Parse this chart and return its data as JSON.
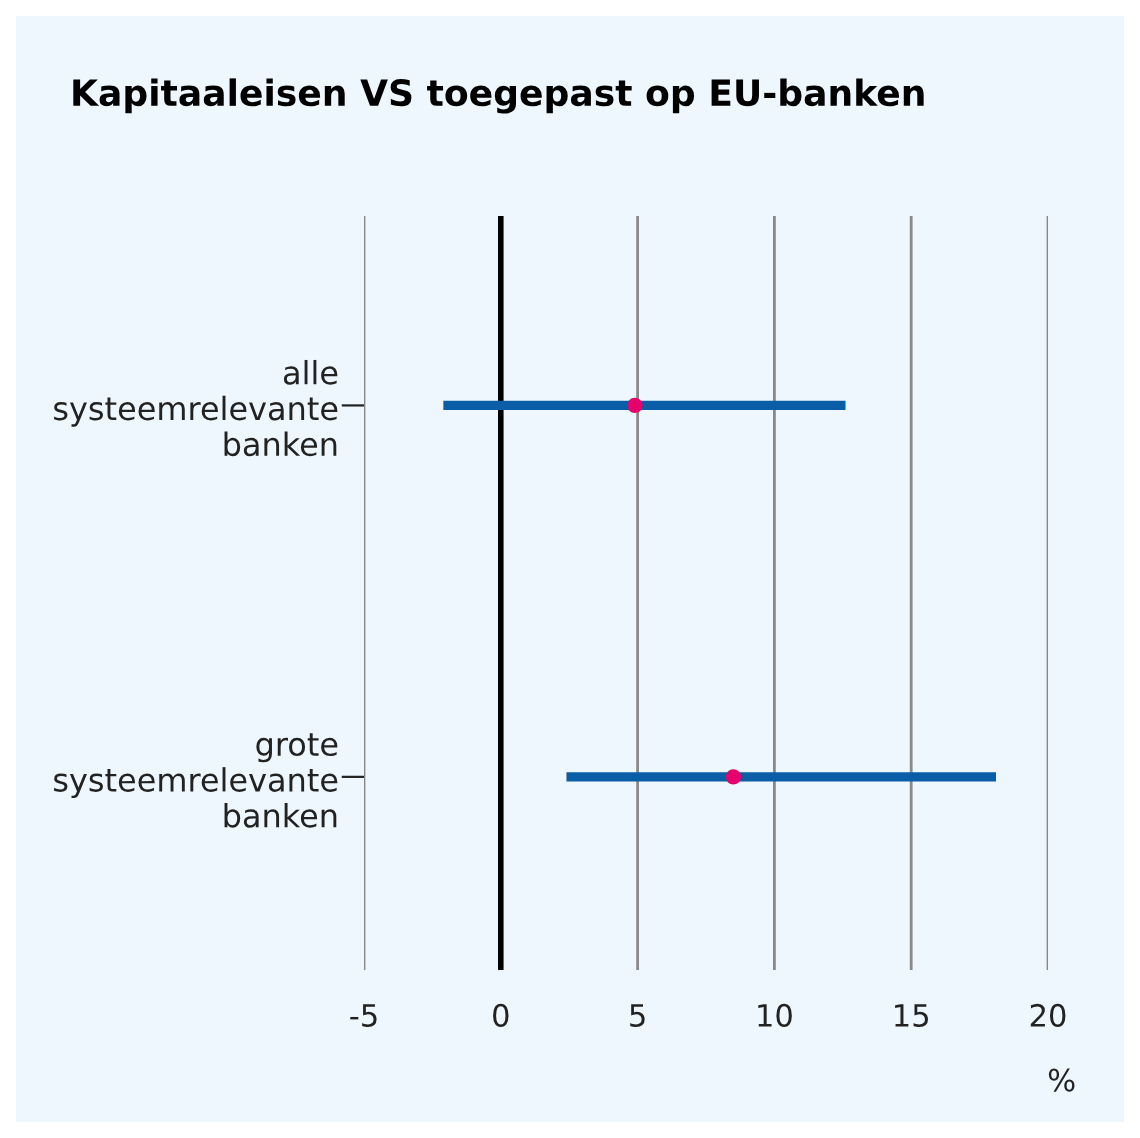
{
  "chart_data": {
    "type": "bar",
    "orientation": "horizontal",
    "title": "Kapitaaleisen VS toegepast op EU-banken",
    "xlabel": "%",
    "categories": [
      "alle\nsysteemrelevante\nbanken",
      "grote\nsysteemrelevante\nbanken"
    ],
    "series": [
      {
        "color": "#0a5ea8",
        "base": [
          -2.1,
          2.4
        ],
        "values": [
          14.7,
          15.7
        ]
      },
      {
        "type": "scatter",
        "color": "#e5006d",
        "values": [
          4.9,
          8.5
        ]
      }
    ],
    "xlim": [
      -5,
      20
    ],
    "xticks": [
      -5,
      0,
      5,
      10,
      15,
      20
    ],
    "ref_lines": [
      {
        "axis": "x",
        "value": 0,
        "color": "#000000"
      }
    ],
    "grid": "x",
    "legend": false
  }
}
